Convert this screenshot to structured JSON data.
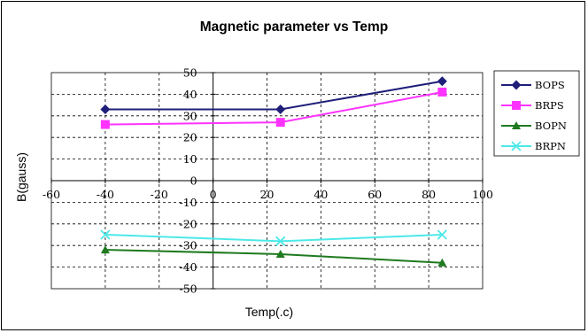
{
  "chart_data": {
    "type": "line",
    "title": "Magnetic parameter vs Temp",
    "xlabel": "Temp(.c)",
    "ylabel": "B(gauss)",
    "xlim": [
      -60,
      100
    ],
    "ylim": [
      -50,
      50
    ],
    "x_ticks": [
      -60,
      -40,
      -20,
      0,
      20,
      40,
      60,
      80,
      100
    ],
    "y_ticks": [
      50,
      40,
      30,
      20,
      10,
      0,
      -10,
      -20,
      -30,
      -40,
      -50
    ],
    "grid": true,
    "legend_position": "right",
    "x": [
      -40,
      25,
      85
    ],
    "series": [
      {
        "name": "BOPS",
        "values": [
          33,
          33,
          46
        ],
        "color": "#1f1f7a",
        "marker": "diamond"
      },
      {
        "name": "BRPS",
        "values": [
          26,
          27,
          41
        ],
        "color": "#ff33ff",
        "marker": "square"
      },
      {
        "name": "BOPN",
        "values": [
          -32,
          -34,
          -38
        ],
        "color": "#1f7a1f",
        "marker": "triangle"
      },
      {
        "name": "BRPN",
        "values": [
          -25,
          -28,
          -25
        ],
        "color": "#4de8e8",
        "marker": "x"
      }
    ]
  }
}
